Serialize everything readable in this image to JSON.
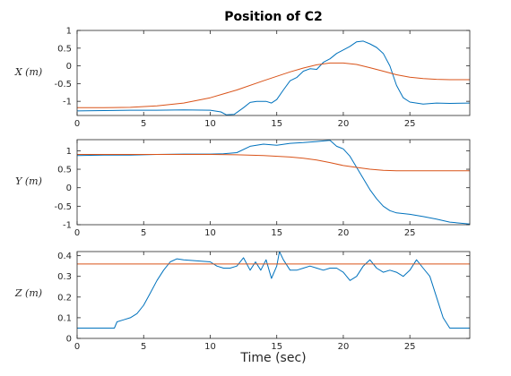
{
  "title": "Position of C2",
  "xlabel": "Time (sec)",
  "colors": {
    "measured": "#0072BD",
    "reference": "#D95319",
    "axis": "#262626"
  },
  "chart_data": [
    {
      "type": "line",
      "ylabel": "X (m)",
      "xlim": [
        0,
        29.5
      ],
      "ylim": [
        -1.4,
        1.0
      ],
      "xticks": [
        0,
        5,
        10,
        15,
        20,
        25
      ],
      "yticks": [
        1,
        0.5,
        0,
        -0.5,
        -1
      ],
      "ytick_labels": [
        "1",
        "0.5",
        "0",
        "-0.5",
        "-1"
      ],
      "grid": false,
      "series": [
        {
          "role": "measured",
          "x": [
            0,
            2,
            4,
            6,
            8,
            10,
            10.8,
            11.2,
            11.8,
            12.5,
            13,
            13.5,
            14.2,
            14.6,
            15,
            15.5,
            16,
            16.5,
            17,
            17.5,
            18,
            18.5,
            19,
            19.5,
            20,
            20.5,
            21,
            21.5,
            22,
            22.5,
            23,
            23.5,
            24,
            24.5,
            25,
            26,
            27,
            28,
            29.5
          ],
          "y": [
            -1.27,
            -1.26,
            -1.25,
            -1.25,
            -1.24,
            -1.25,
            -1.3,
            -1.38,
            -1.37,
            -1.18,
            -1.03,
            -1.0,
            -1.0,
            -1.05,
            -0.95,
            -0.68,
            -0.42,
            -0.33,
            -0.15,
            -0.08,
            -0.1,
            0.1,
            0.2,
            0.35,
            0.45,
            0.55,
            0.68,
            0.7,
            0.62,
            0.52,
            0.35,
            0.0,
            -0.55,
            -0.9,
            -1.02,
            -1.08,
            -1.05,
            -1.06,
            -1.05
          ]
        },
        {
          "role": "reference",
          "x": [
            0,
            2,
            4,
            6,
            8,
            10,
            12,
            14,
            16,
            17,
            18,
            19,
            20,
            21,
            22,
            23,
            24,
            25,
            26,
            27,
            28,
            29.5
          ],
          "y": [
            -1.18,
            -1.18,
            -1.17,
            -1.13,
            -1.05,
            -0.9,
            -0.68,
            -0.42,
            -0.17,
            -0.06,
            0.03,
            0.08,
            0.08,
            0.04,
            -0.05,
            -0.15,
            -0.25,
            -0.32,
            -0.36,
            -0.38,
            -0.39,
            -0.39
          ]
        }
      ]
    },
    {
      "type": "line",
      "ylabel": "Y (m)",
      "xlim": [
        0,
        29.5
      ],
      "ylim": [
        -1.0,
        1.3
      ],
      "xticks": [
        0,
        5,
        10,
        15,
        20,
        25
      ],
      "yticks": [
        1,
        0.5,
        0,
        -0.5,
        -1
      ],
      "ytick_labels": [
        "1",
        "0.5",
        "0",
        "-0.5",
        "-1"
      ],
      "grid": false,
      "series": [
        {
          "role": "measured",
          "x": [
            0,
            2,
            4,
            6,
            8,
            10,
            11,
            12,
            13,
            14,
            15,
            16,
            17,
            18,
            19,
            19.5,
            20,
            20.5,
            21,
            21.5,
            22,
            22.5,
            23,
            23.5,
            24,
            25,
            26,
            27,
            28,
            29.5
          ],
          "y": [
            0.87,
            0.88,
            0.88,
            0.9,
            0.91,
            0.91,
            0.92,
            0.95,
            1.12,
            1.18,
            1.15,
            1.2,
            1.22,
            1.25,
            1.28,
            1.12,
            1.05,
            0.85,
            0.55,
            0.25,
            -0.05,
            -0.3,
            -0.5,
            -0.62,
            -0.68,
            -0.72,
            -0.78,
            -0.85,
            -0.93,
            -0.98
          ]
        },
        {
          "role": "reference",
          "x": [
            0,
            5,
            10,
            12,
            14,
            16,
            17,
            18,
            19,
            20,
            21,
            22,
            23,
            24,
            25,
            27,
            29.5
          ],
          "y": [
            0.9,
            0.9,
            0.9,
            0.89,
            0.87,
            0.83,
            0.8,
            0.75,
            0.68,
            0.6,
            0.55,
            0.5,
            0.47,
            0.46,
            0.46,
            0.46,
            0.46
          ]
        }
      ]
    },
    {
      "type": "line",
      "ylabel": "Z (m)",
      "xlim": [
        0,
        29.5
      ],
      "ylim": [
        0,
        0.42
      ],
      "xticks": [
        0,
        5,
        10,
        15,
        20,
        25
      ],
      "yticks": [
        0.4,
        0.3,
        0.2,
        0.1,
        0
      ],
      "ytick_labels": [
        "0.4",
        "0.3",
        "0.2",
        "0.1",
        "0"
      ],
      "grid": false,
      "series": [
        {
          "role": "measured",
          "x": [
            0,
            1,
            2,
            2.8,
            3,
            3.5,
            4,
            4.5,
            5,
            5.5,
            6,
            6.5,
            7,
            7.5,
            8,
            9,
            10,
            10.5,
            11,
            11.5,
            12,
            12.5,
            13,
            13.4,
            13.8,
            14.2,
            14.6,
            15,
            15.2,
            15.5,
            16,
            16.5,
            17,
            17.5,
            18,
            18.5,
            19,
            19.5,
            20,
            20.5,
            21,
            21.5,
            22,
            22.5,
            23,
            23.5,
            24,
            24.5,
            25,
            25.5,
            26,
            26.5,
            27,
            27.5,
            28,
            29.5
          ],
          "y": [
            0.05,
            0.05,
            0.05,
            0.05,
            0.08,
            0.09,
            0.1,
            0.12,
            0.16,
            0.22,
            0.28,
            0.33,
            0.37,
            0.385,
            0.38,
            0.375,
            0.37,
            0.35,
            0.34,
            0.34,
            0.35,
            0.39,
            0.33,
            0.37,
            0.33,
            0.38,
            0.29,
            0.35,
            0.42,
            0.38,
            0.33,
            0.33,
            0.34,
            0.35,
            0.34,
            0.33,
            0.34,
            0.34,
            0.32,
            0.28,
            0.3,
            0.35,
            0.38,
            0.34,
            0.32,
            0.33,
            0.32,
            0.3,
            0.33,
            0.38,
            0.34,
            0.3,
            0.2,
            0.1,
            0.05,
            0.05
          ]
        },
        {
          "role": "reference",
          "x": [
            0,
            29.5
          ],
          "y": [
            0.36,
            0.36
          ]
        }
      ]
    }
  ]
}
